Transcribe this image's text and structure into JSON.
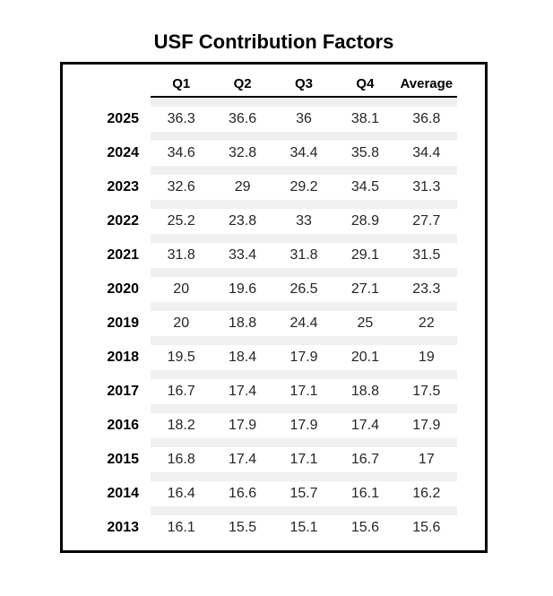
{
  "title": "USF Contribution Factors",
  "colors": {
    "background": "#ffffff",
    "frame_border": "#000000",
    "row_stripe": "#f0f0f0",
    "data_text": "#262626",
    "strong_text": "#000000"
  },
  "chart_data": {
    "type": "table",
    "title": "USF Contribution Factors",
    "columns": [
      "Q1",
      "Q2",
      "Q3",
      "Q4",
      "Average"
    ],
    "row_labels": [
      "2025",
      "2024",
      "2023",
      "2022",
      "2021",
      "2020",
      "2019",
      "2018",
      "2017",
      "2016",
      "2015",
      "2014",
      "2013"
    ],
    "rows": [
      [
        "36.3",
        "36.6",
        "36",
        "38.1",
        "36.8"
      ],
      [
        "34.6",
        "32.8",
        "34.4",
        "35.8",
        "34.4"
      ],
      [
        "32.6",
        "29",
        "29.2",
        "34.5",
        "31.3"
      ],
      [
        "25.2",
        "23.8",
        "33",
        "28.9",
        "27.7"
      ],
      [
        "31.8",
        "33.4",
        "31.8",
        "29.1",
        "31.5"
      ],
      [
        "20",
        "19.6",
        "26.5",
        "27.1",
        "23.3"
      ],
      [
        "20",
        "18.8",
        "24.4",
        "25",
        "22"
      ],
      [
        "19.5",
        "18.4",
        "17.9",
        "20.1",
        "19"
      ],
      [
        "16.7",
        "17.4",
        "17.1",
        "18.8",
        "17.5"
      ],
      [
        "18.2",
        "17.9",
        "17.9",
        "17.4",
        "17.9"
      ],
      [
        "16.8",
        "17.4",
        "17.1",
        "16.7",
        "17"
      ],
      [
        "16.4",
        "16.6",
        "15.7",
        "16.1",
        "16.2"
      ],
      [
        "16.1",
        "15.5",
        "15.1",
        "15.6",
        "15.6"
      ]
    ],
    "layout": {
      "grid": "off",
      "row_striping": "between-rows",
      "striped_region": "data-columns-only",
      "year_column_alignment": "right",
      "value_alignment": "center"
    }
  }
}
